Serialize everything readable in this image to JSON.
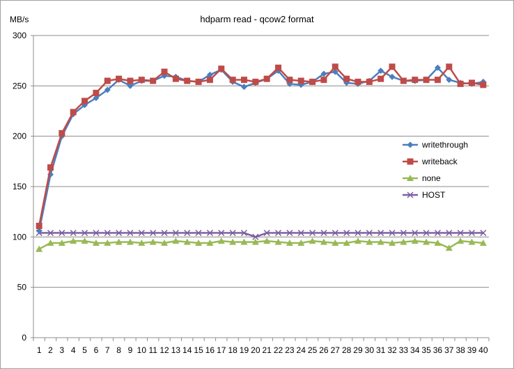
{
  "chart_data": {
    "type": "line",
    "title": "hdparm read - qcow2 format",
    "ylabel": "MB/s",
    "xlabel": "",
    "ylim": [
      0,
      300
    ],
    "yticks": [
      0,
      50,
      100,
      150,
      200,
      250,
      300
    ],
    "grid": true,
    "legend_position": "right",
    "categories": [
      "1",
      "2",
      "3",
      "4",
      "5",
      "6",
      "7",
      "8",
      "9",
      "10",
      "11",
      "12",
      "13",
      "14",
      "15",
      "16",
      "17",
      "18",
      "19",
      "20",
      "21",
      "22",
      "23",
      "24",
      "25",
      "26",
      "27",
      "28",
      "29",
      "30",
      "31",
      "32",
      "33",
      "34",
      "35",
      "36",
      "37",
      "38",
      "39",
      "40"
    ],
    "series": [
      {
        "name": "writethrough",
        "color": "#4a7ebf",
        "marker": "diamond",
        "values": [
          106,
          162,
          200,
          222,
          231,
          238,
          246,
          256,
          250,
          255,
          255,
          260,
          259,
          255,
          254,
          261,
          266,
          254,
          249,
          253,
          257,
          265,
          252,
          251,
          254,
          262,
          264,
          253,
          252,
          255,
          265,
          259,
          255,
          255,
          256,
          268,
          256,
          253,
          252,
          254
        ]
      },
      {
        "name": "writeback",
        "color": "#be4b48",
        "marker": "square",
        "values": [
          111,
          169,
          203,
          224,
          235,
          243,
          255,
          257,
          255,
          256,
          255,
          264,
          257,
          255,
          254,
          256,
          267,
          256,
          256,
          254,
          257,
          268,
          256,
          255,
          254,
          256,
          269,
          257,
          254,
          254,
          257,
          269,
          255,
          256,
          256,
          256,
          269,
          252,
          253,
          251
        ]
      },
      {
        "name": "none",
        "color": "#98b954",
        "marker": "triangle",
        "values": [
          88,
          94,
          94,
          96,
          96,
          94,
          94,
          95,
          95,
          94,
          95,
          94,
          96,
          95,
          94,
          94,
          96,
          95,
          95,
          95,
          96,
          95,
          94,
          94,
          96,
          95,
          94,
          94,
          96,
          95,
          95,
          94,
          95,
          96,
          95,
          94,
          89,
          96,
          95,
          94
        ]
      },
      {
        "name": "HOST",
        "color": "#7d60a0",
        "marker": "x",
        "values": [
          104,
          104,
          104,
          104,
          104,
          104,
          104,
          104,
          104,
          104,
          104,
          104,
          104,
          104,
          104,
          104,
          104,
          104,
          104,
          100,
          104,
          104,
          104,
          104,
          104,
          104,
          104,
          104,
          104,
          104,
          104,
          104,
          104,
          104,
          104,
          104,
          104,
          104,
          104,
          104
        ]
      }
    ]
  }
}
